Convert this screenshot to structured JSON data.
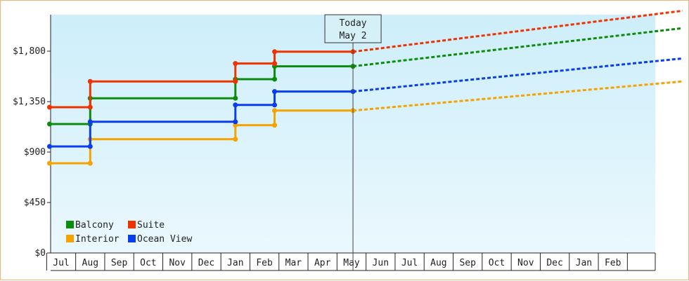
{
  "chart_data": {
    "type": "line",
    "step": true,
    "title": "",
    "xlabel": "",
    "ylabel": "",
    "ylim": [
      0,
      2125
    ],
    "y_ticks": [
      0,
      450,
      900,
      1350,
      1800
    ],
    "y_tick_labels": [
      "$0",
      "$450",
      "$900",
      "$1,350",
      "$1,800"
    ],
    "x_months": [
      "Jul",
      "Aug",
      "Sep",
      "Oct",
      "Nov",
      "Dec",
      "Jan",
      "Feb",
      "Mar",
      "Apr",
      "May",
      "Jun",
      "Jul",
      "Aug",
      "Sep",
      "Oct",
      "Nov",
      "Dec",
      "Jan",
      "Feb"
    ],
    "today": {
      "line1": "Today",
      "line2": "May 2",
      "month_pos": 10.05
    },
    "legend": {
      "placement": "bottom-left"
    },
    "background": {
      "top": "#cdeefa",
      "bottom": "#eaf8fd"
    },
    "series": [
      {
        "name": "Balcony",
        "color": "#0c8c0c",
        "steps": [
          [
            -0.4,
            1150
          ],
          [
            1.0,
            1380
          ],
          [
            6.0,
            1550
          ],
          [
            7.35,
            1665
          ],
          [
            10.05,
            1665
          ]
        ],
        "forecast": [
          [
            10.05,
            1665
          ],
          [
            21.4,
            2005
          ]
        ]
      },
      {
        "name": "Suite",
        "color": "#ee3300",
        "steps": [
          [
            -0.4,
            1300
          ],
          [
            1.0,
            1530
          ],
          [
            6.0,
            1690
          ],
          [
            7.35,
            1795
          ],
          [
            10.05,
            1795
          ]
        ],
        "forecast": [
          [
            10.05,
            1795
          ],
          [
            21.4,
            2160
          ]
        ]
      },
      {
        "name": "Interior",
        "color": "#f5a300",
        "steps": [
          [
            -0.4,
            800
          ],
          [
            1.0,
            1015
          ],
          [
            6.0,
            1140
          ],
          [
            7.35,
            1270
          ],
          [
            10.05,
            1270
          ]
        ],
        "forecast": [
          [
            10.05,
            1270
          ],
          [
            21.4,
            1530
          ]
        ]
      },
      {
        "name": "Ocean View",
        "color": "#0a3df0",
        "steps": [
          [
            -0.4,
            950
          ],
          [
            1.0,
            1170
          ],
          [
            6.0,
            1320
          ],
          [
            7.35,
            1440
          ],
          [
            10.05,
            1440
          ]
        ],
        "forecast": [
          [
            10.05,
            1440
          ],
          [
            21.4,
            1735
          ]
        ]
      }
    ]
  }
}
